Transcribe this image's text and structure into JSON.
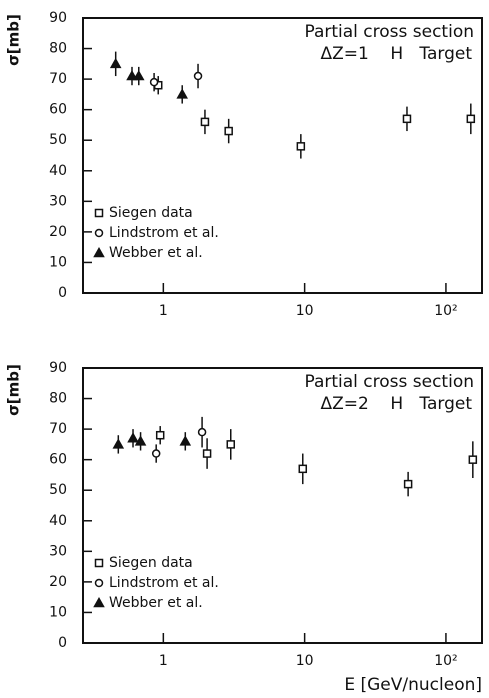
{
  "chart_data": [
    {
      "type": "scatter",
      "title": "Partial cross section",
      "subtitle": "ΔZ=1    H   Target",
      "y_label": "σ[mb]",
      "log_x": true,
      "xlim": [
        0.27,
        180
      ],
      "xticks": [
        1,
        10,
        {
          "value": 100,
          "label": "10²"
        }
      ],
      "ylim": [
        0,
        90
      ],
      "yticks": [
        0,
        10,
        20,
        30,
        40,
        50,
        60,
        70,
        80,
        90
      ],
      "series": [
        {
          "name": "Siegen data",
          "marker": "square",
          "x": [
            0.92,
            1.97,
            2.9,
            9.4,
            53,
            150
          ],
          "values": [
            68,
            56,
            53,
            48,
            57,
            57
          ],
          "errors": [
            3,
            4,
            4,
            4,
            4,
            5
          ]
        },
        {
          "name": "Lindstrom et al.",
          "marker": "circle",
          "x": [
            0.86,
            1.76
          ],
          "values": [
            69,
            71
          ],
          "errors": [
            3,
            4
          ]
        },
        {
          "name": "Webber et al.",
          "marker": "triangle",
          "x": [
            0.46,
            0.6,
            0.67,
            1.36
          ],
          "values": [
            75,
            71,
            71,
            65
          ],
          "errors": [
            4,
            3,
            3,
            3
          ]
        }
      ]
    },
    {
      "type": "scatter",
      "title": "Partial cross section",
      "subtitle": "ΔZ=2    H   Target",
      "y_label": "σ[mb]",
      "x_label": "E  [GeV/nucleon]",
      "log_x": true,
      "xlim": [
        0.27,
        180
      ],
      "xticks": [
        1,
        10,
        {
          "value": 100,
          "label": "10²"
        }
      ],
      "ylim": [
        0,
        90
      ],
      "yticks": [
        0,
        10,
        20,
        30,
        40,
        50,
        60,
        70,
        80,
        90
      ],
      "series": [
        {
          "name": "Siegen data",
          "marker": "square",
          "x": [
            0.95,
            2.04,
            3.0,
            9.7,
            54,
            155
          ],
          "values": [
            68,
            62,
            65,
            57,
            52,
            60
          ],
          "errors": [
            3,
            5,
            5,
            5,
            4,
            6
          ]
        },
        {
          "name": "Lindstrom et al.",
          "marker": "circle",
          "x": [
            0.89,
            1.88
          ],
          "values": [
            62,
            69
          ],
          "errors": [
            3,
            5
          ]
        },
        {
          "name": "Webber et al.",
          "marker": "triangle",
          "x": [
            0.48,
            0.61,
            0.69,
            1.43
          ],
          "values": [
            65,
            67,
            66,
            66
          ],
          "errors": [
            3,
            3,
            3,
            3
          ]
        }
      ]
    }
  ]
}
